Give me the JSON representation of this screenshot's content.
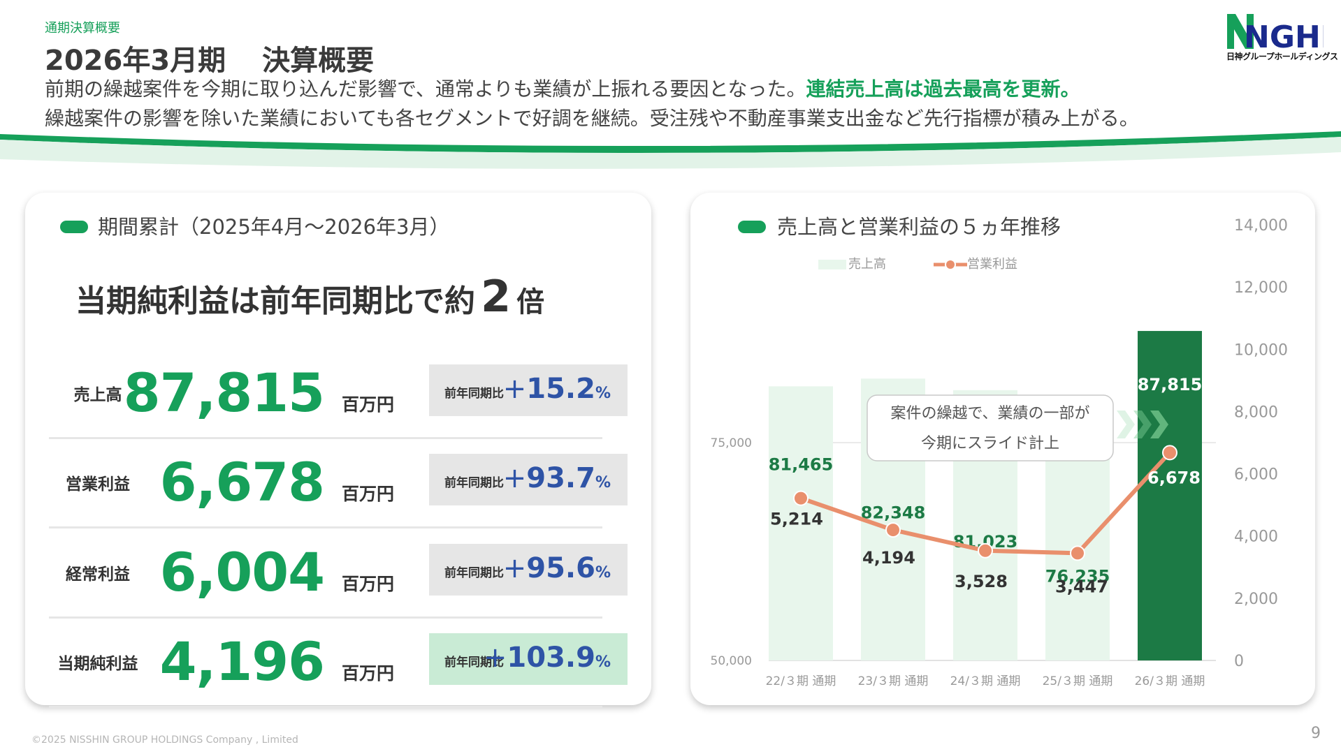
{
  "header": {
    "breadcrumb": "通期決算概要",
    "title_period": "2026年3月期",
    "title_main": "決算概要",
    "desc_line1": "前期の繰越案件を今期に取り込んだ影響で、通常よりも業績が上振れる要因となった。",
    "desc_line1_highlight": "連結売上高は過去最高を更新。",
    "desc_line2": "繰越案件の影響を除いた業績においても各セグメントで好調を継続。受注残や不動産事業支出金など先行指標が積み上がる。"
  },
  "logo": {
    "text": "NGHD",
    "subtitle": "日神グループホールディングス"
  },
  "summary": {
    "heading": "期間累計（2025年4月～2026年3月）",
    "headline_prefix": "当期純利益は前年同期比で約",
    "headline_number": "2",
    "headline_suffix": "倍",
    "rows": [
      {
        "label": "売上高",
        "value": "87,815",
        "unit": "百万円",
        "compare_label": "前年同期比",
        "sign": "+",
        "change": "15.2",
        "pct": "%"
      },
      {
        "label": "営業利益",
        "value": "6,678",
        "unit": "百万円",
        "compare_label": "前年同期比",
        "sign": "+",
        "change": "93.7",
        "pct": "%"
      },
      {
        "label": "経常利益",
        "value": "6,004",
        "unit": "百万円",
        "compare_label": "前年同期比",
        "sign": "+",
        "change": "95.6",
        "pct": "%"
      },
      {
        "label": "当期純利益",
        "value": "4,196",
        "unit": "百万円",
        "compare_label": "前年同期比",
        "sign": "+",
        "change": "103.9",
        "pct": "%"
      }
    ]
  },
  "chart_heading": "売上高と営業利益の５ヵ年推移",
  "chart_data": {
    "type": "bar",
    "title": "",
    "categories": [
      "22/３期 通期",
      "23/３期 通期",
      "24/３期 通期",
      "25/３期 通期",
      "26/３期 通期"
    ],
    "series": [
      {
        "name": "売上高",
        "type": "bar",
        "axis": "left",
        "values": [
          81465,
          82348,
          81023,
          76235,
          87815
        ]
      },
      {
        "name": "営業利益",
        "type": "line",
        "axis": "right",
        "values": [
          5214,
          4194,
          3528,
          3447,
          6678
        ]
      }
    ],
    "left_axis": {
      "range": [
        50000,
        100000
      ],
      "ticks": [
        50000,
        75000
      ],
      "tick_labels": [
        "50,000",
        "75,000"
      ]
    },
    "right_axis": {
      "range": [
        0,
        14000
      ],
      "ticks": [
        0,
        2000,
        4000,
        6000,
        8000,
        10000,
        12000,
        14000
      ],
      "tick_labels": [
        "0",
        "2,000",
        "4,000",
        "6,000",
        "8,000",
        "10,000",
        "12,000",
        "14,000"
      ]
    },
    "bar_labels": [
      "81,465",
      "82,348",
      "81,023",
      "76,235",
      "87,815"
    ],
    "line_labels": [
      "5,214",
      "4,194",
      "3,528",
      "3,447",
      "6,678"
    ],
    "legend_position": "top",
    "grid": false,
    "callout": {
      "line1": "案件の繰越で、業績の一部が",
      "line2": "今期にスライド計上"
    }
  },
  "colors": {
    "accent": "#16a05a",
    "bar_light": "#e8f6ec",
    "bar_highlight": "#1c7a45",
    "line": "#e98f6c",
    "change_text": "#2e53a6"
  },
  "footer": {
    "copyright": "©2025 NISSHIN GROUP HOLDINGS Company , Limited",
    "page": "9"
  }
}
